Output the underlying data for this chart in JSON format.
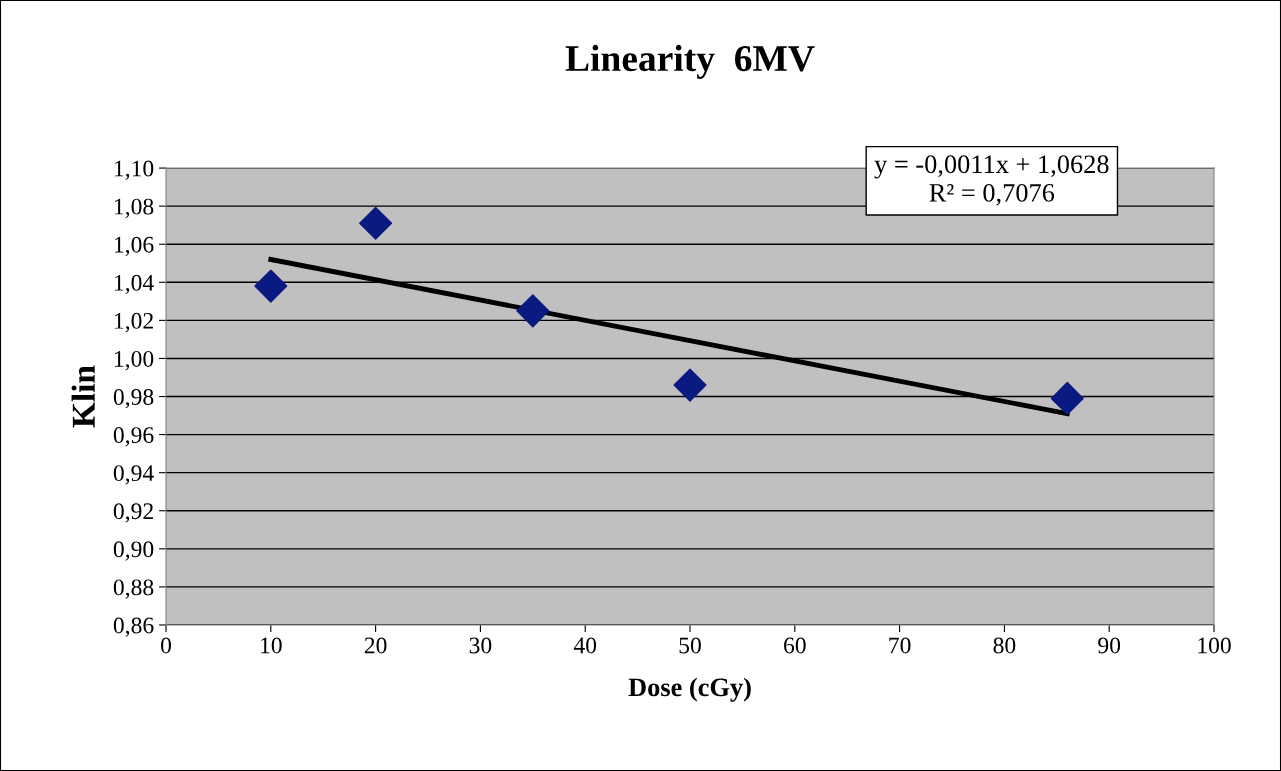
{
  "chart_data": {
    "type": "scatter",
    "title": "Linearity  6MV",
    "xlabel": "Dose (cGy)",
    "ylabel": "Klin",
    "series": [
      {
        "color": "#0b1a80",
        "marker": "diamond",
        "x": [
          10,
          20,
          35,
          50,
          86
        ],
        "values": [
          1.038,
          1.071,
          1.025,
          0.986,
          0.979
        ]
      },
      {
        "type": "line",
        "color": "#000000",
        "marker": "none",
        "line_style": "solid",
        "x": [
          10,
          86
        ],
        "values": [
          1.052,
          0.971
        ]
      }
    ],
    "xlim": [
      0,
      100
    ],
    "xticks": [
      0,
      10,
      20,
      30,
      40,
      50,
      60,
      70,
      80,
      90,
      100
    ],
    "ylim": [
      0.86,
      1.1
    ],
    "yticks": [
      {
        "value": 0.86,
        "label": "0,86"
      },
      {
        "value": 0.88,
        "label": "0,88"
      },
      {
        "value": 0.9,
        "label": "0,90"
      },
      {
        "value": 0.92,
        "label": "0,92"
      },
      {
        "value": 0.94,
        "label": "0,94"
      },
      {
        "value": 0.96,
        "label": "0,96"
      },
      {
        "value": 0.98,
        "label": "0,98"
      },
      {
        "value": 1.0,
        "label": "1,00"
      },
      {
        "value": 1.02,
        "label": "1,02"
      },
      {
        "value": 1.04,
        "label": "1,04"
      },
      {
        "value": 1.06,
        "label": "1,06"
      },
      {
        "value": 1.08,
        "label": "1,08"
      },
      {
        "value": 1.1,
        "label": "1,10"
      }
    ],
    "grid": "y",
    "annotations": [
      "y = -0,0011x + 1,0628\nR² = 0,7076"
    ]
  }
}
